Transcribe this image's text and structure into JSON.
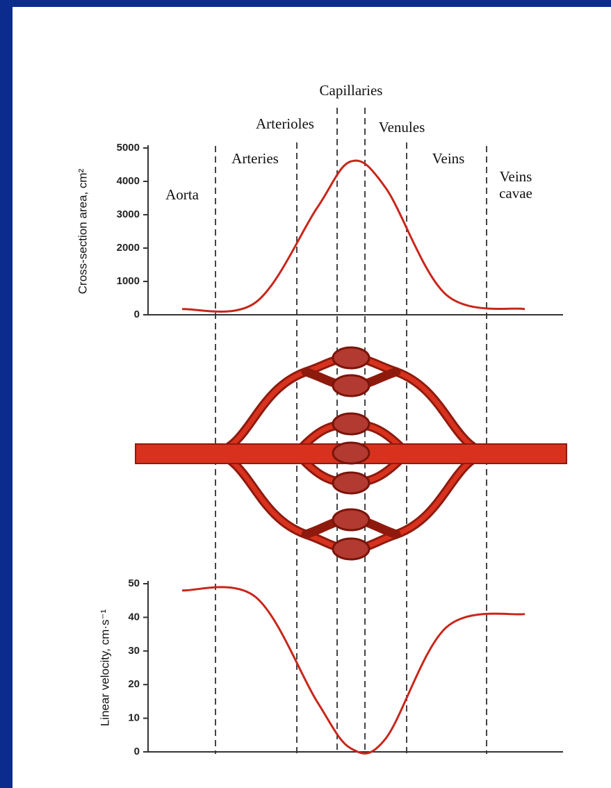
{
  "chart_data": [
    {
      "type": "line",
      "y_label": "Cross-section area, cm²",
      "categories": [
        "Aorta",
        "Arteries",
        "Arterioles",
        "Capillaries",
        "Venules",
        "Veins",
        "Veins cavae"
      ],
      "values": [
        170,
        375,
        3200,
        4600,
        3800,
        600,
        170
      ],
      "color": "#c8261a",
      "ylim": [
        0,
        5000
      ],
      "yticks": [
        0,
        1000,
        2000,
        3000,
        4000,
        5000
      ]
    },
    {
      "type": "line",
      "y_label": "Linear velocity, cm·s⁻¹",
      "categories": [
        null,
        null,
        null,
        null,
        null,
        null,
        null
      ],
      "values": [
        48,
        46,
        15,
        1,
        4,
        37,
        41
      ],
      "color": "#c8261a",
      "ylim": [
        0,
        50
      ],
      "yticks": [
        0,
        10,
        20,
        30,
        40,
        50
      ]
    }
  ]
}
